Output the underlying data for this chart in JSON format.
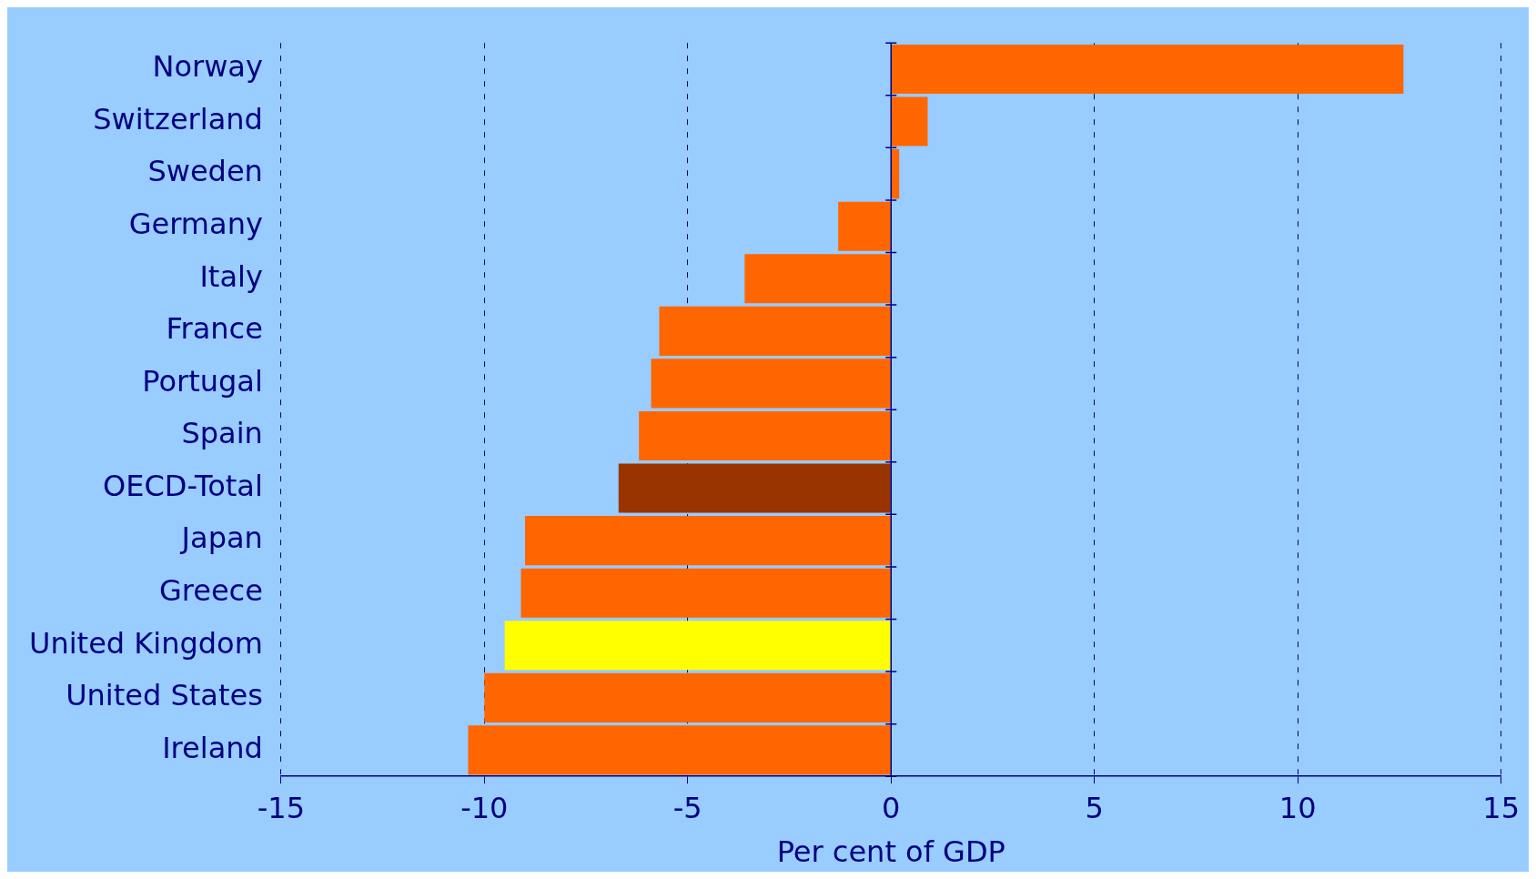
{
  "chart_data": {
    "type": "bar",
    "orientation": "horizontal",
    "xlabel": "Per cent of GDP",
    "categories": [
      "Norway",
      "Switzerland",
      "Sweden",
      "Germany",
      "Italy",
      "France",
      "Portugal",
      "Spain",
      "OECD-Total",
      "Japan",
      "Greece",
      "United Kingdom",
      "United States",
      "Ireland"
    ],
    "values": [
      12.6,
      0.9,
      0.2,
      -1.3,
      -3.6,
      -5.7,
      -5.9,
      -6.2,
      -6.7,
      -9.0,
      -9.1,
      -9.5,
      -10.0,
      -10.4
    ],
    "colors": [
      "#ff6600",
      "#ff6600",
      "#ff6600",
      "#ff6600",
      "#ff6600",
      "#ff6600",
      "#ff6600",
      "#ff6600",
      "#993300",
      "#ff6600",
      "#ff6600",
      "#ffff00",
      "#ff6600",
      "#ff6600"
    ],
    "ref_lines": [
      {
        "axis": "x",
        "value": 0,
        "color": "#000080",
        "line_style": "solid"
      }
    ],
    "xlim": [
      -15,
      15
    ],
    "xticks": [
      -15,
      -10,
      -5,
      0,
      5,
      10,
      15
    ],
    "grid": "x",
    "legend": false
  }
}
